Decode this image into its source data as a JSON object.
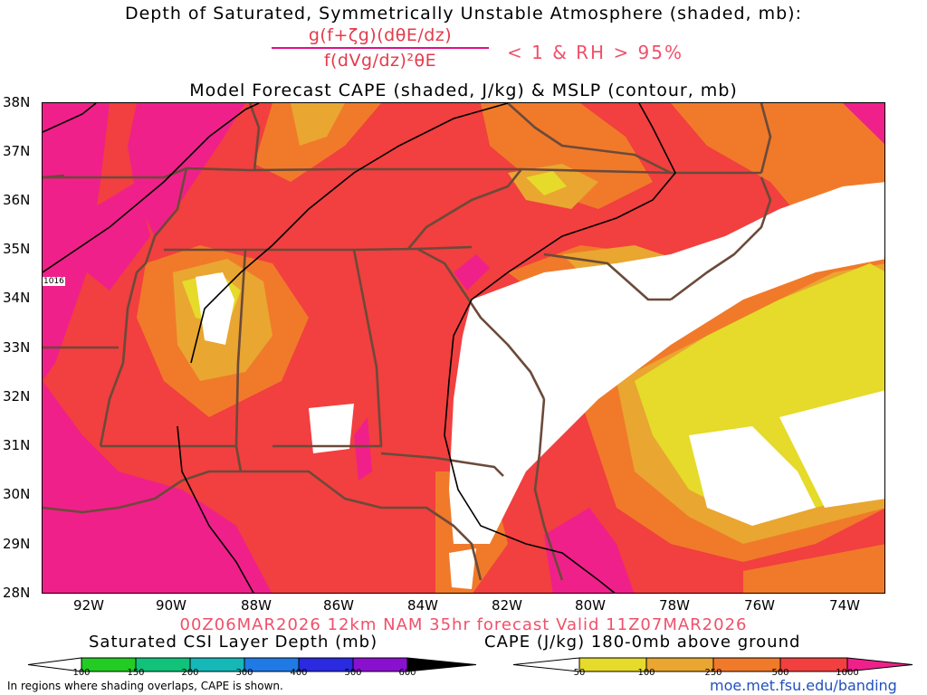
{
  "titles": {
    "line1": "Depth of Saturated, Symmetrically Unstable Atmosphere (shaded, mb):",
    "numerator": "g(f+ζg)(dθE/dz)",
    "denominator": "f(dVg/dz)²θE",
    "condition": "< 1 & RH > 95%",
    "line3": "Model Forecast CAPE (shaded, J/kg) & MSLP (contour, mb)",
    "valid": "00Z06MAR2026 12km NAM 35hr forecast Valid 11Z07MAR2026"
  },
  "latitude_labels": [
    "38N",
    "37N",
    "36N",
    "35N",
    "34N",
    "33N",
    "32N",
    "31N",
    "30N",
    "29N",
    "28N"
  ],
  "longitude_labels": [
    "92W",
    "90W",
    "88W",
    "86W",
    "84W",
    "82W",
    "80W",
    "78W",
    "76W",
    "74W"
  ],
  "isobar_label": "1016",
  "legends": {
    "csi": {
      "title": "Saturated CSI Layer Depth (mb)",
      "ticks": [
        "100",
        "150",
        "200",
        "300",
        "400",
        "500",
        "600"
      ],
      "colors": [
        "#ffffff",
        "#22cc22",
        "#11c27a",
        "#15b7b7",
        "#1f7ae6",
        "#2a2ae0",
        "#8a10d0",
        "#000000"
      ]
    },
    "cape": {
      "title": "CAPE (J/kg) 180-0mb above ground",
      "ticks": [
        "50",
        "100",
        "250",
        "500",
        "1000"
      ],
      "colors": [
        "#ffffff",
        "#e6da2a",
        "#e9a630",
        "#f07a2a",
        "#f23f3f",
        "#f0208a"
      ]
    }
  },
  "footer": {
    "note": "In regions where shading overlaps, CAPE is shown.",
    "url": "moe.met.fsu.edu/banding"
  }
}
